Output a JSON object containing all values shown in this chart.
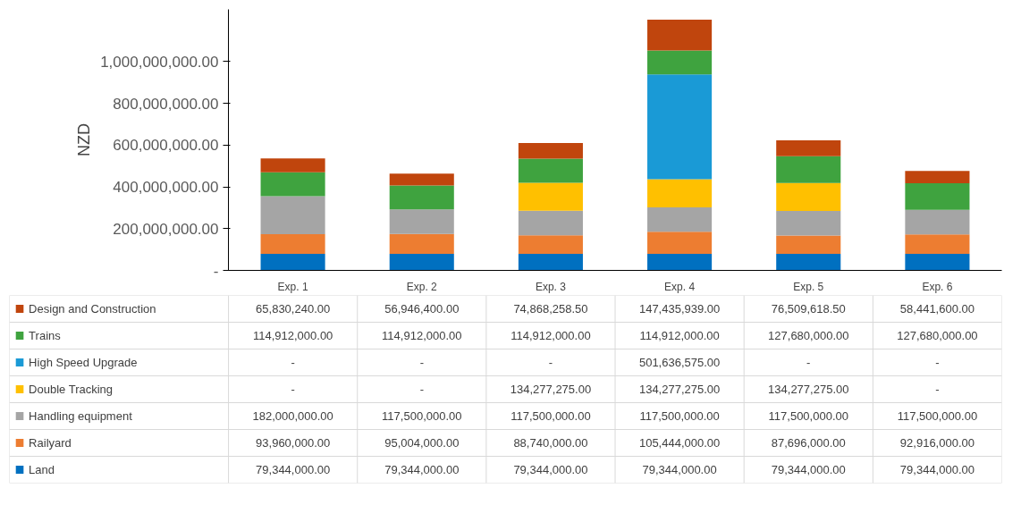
{
  "chart_data": {
    "type": "bar",
    "stacked": true,
    "ylabel": "NZD",
    "categories": [
      "Exp. 1",
      "Exp. 2",
      "Exp. 3",
      "Exp. 4",
      "Exp. 5",
      "Exp. 6"
    ],
    "ylim": [
      0,
      1250000000
    ],
    "yticks": [
      {
        "value": 0,
        "label": "-"
      },
      {
        "value": 200000000,
        "label": "200,000,000.00"
      },
      {
        "value": 400000000,
        "label": "400,000,000.00"
      },
      {
        "value": 600000000,
        "label": "600,000,000.00"
      },
      {
        "value": 800000000,
        "label": "800,000,000.00"
      },
      {
        "value": 1000000000,
        "label": "1,000,000,000.00"
      }
    ],
    "grid": false,
    "legend": "bottom",
    "series": [
      {
        "name": "Land",
        "color": "#0070c0",
        "values": [
          79344000,
          79344000,
          79344000,
          79344000,
          79344000,
          79344000
        ],
        "value_labels": [
          "79,344,000.00",
          "79,344,000.00",
          "79,344,000.00",
          "79,344,000.00",
          "79,344,000.00",
          "79,344,000.00"
        ]
      },
      {
        "name": "Railyard",
        "color": "#ed7d31",
        "values": [
          93960000,
          95004000,
          88740000,
          105444000,
          87696000,
          92916000
        ],
        "value_labels": [
          "93,960,000.00",
          "95,004,000.00",
          "88,740,000.00",
          "105,444,000.00",
          "87,696,000.00",
          "92,916,000.00"
        ]
      },
      {
        "name": "Handling equipment",
        "color": "#a5a5a5",
        "values": [
          182000000,
          117500000,
          117500000,
          117500000,
          117500000,
          117500000
        ],
        "value_labels": [
          "182,000,000.00",
          "117,500,000.00",
          "117,500,000.00",
          "117,500,000.00",
          "117,500,000.00",
          "117,500,000.00"
        ]
      },
      {
        "name": "Double Tracking",
        "color": "#ffc000",
        "values": [
          0,
          0,
          134277275,
          134277275,
          134277275,
          0
        ],
        "value_labels": [
          "-",
          "-",
          "134,277,275.00",
          "134,277,275.00",
          "134,277,275.00",
          "-"
        ]
      },
      {
        "name": "High Speed Upgrade",
        "color": "#1a9ad6",
        "values": [
          0,
          0,
          0,
          501636575,
          0,
          0
        ],
        "value_labels": [
          "-",
          "-",
          "-",
          "501,636,575.00",
          "-",
          "-"
        ]
      },
      {
        "name": "Trains",
        "color": "#3fa33f",
        "values": [
          114912000,
          114912000,
          114912000,
          114912000,
          127680000,
          127680000
        ],
        "value_labels": [
          "114,912,000.00",
          "114,912,000.00",
          "114,912,000.00",
          "114,912,000.00",
          "127,680,000.00",
          "127,680,000.00"
        ]
      },
      {
        "name": "Design and Construction",
        "color": "#c0450d",
        "values": [
          65830240,
          56946400,
          74868258.5,
          147435939,
          76509618.5,
          58441600
        ],
        "value_labels": [
          "65,830,240.00",
          "56,946,400.00",
          "74,868,258.50",
          "147,435,939.00",
          "76,509,618.50",
          "58,441,600.00"
        ]
      }
    ]
  }
}
